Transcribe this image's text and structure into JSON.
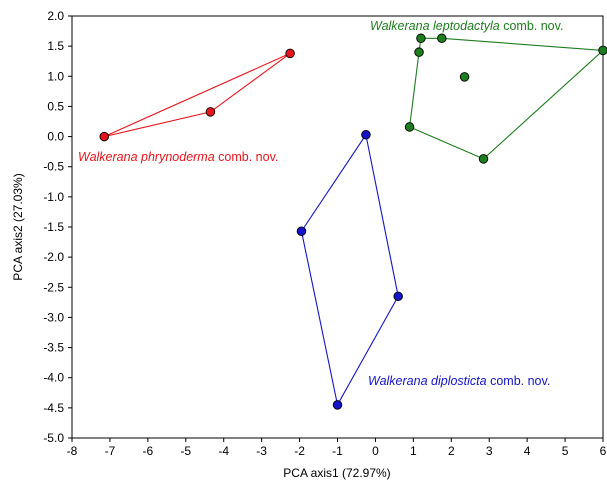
{
  "chart_data": {
    "type": "scatter",
    "xlabel": "PCA axis1 (72.97%)",
    "ylabel": "PCA axis2 (27.03%)",
    "xlim": [
      -8,
      6
    ],
    "ylim": [
      -5.0,
      2.0
    ],
    "x_ticks": [
      -8,
      -7,
      -6,
      -5,
      -4,
      -3,
      -2,
      -1,
      0,
      1,
      2,
      3,
      4,
      5,
      6
    ],
    "x_tick_labels": [
      "-8",
      "-7",
      "-6",
      "-5",
      "-4",
      "-3",
      "-2",
      "-1",
      "0",
      "1",
      "2",
      "3",
      "4",
      "5",
      "6"
    ],
    "y_ticks": [
      2.0,
      1.5,
      1.0,
      0.5,
      0.0,
      -0.5,
      -1.0,
      -1.5,
      -2.0,
      -2.5,
      -3.0,
      -3.5,
      -4.0,
      -4.5,
      -5.0
    ],
    "y_tick_labels": [
      "2.0",
      "1.5",
      "1.0",
      "0.5",
      "0.0",
      "-0.5",
      "-1.0",
      "-1.5",
      "-2.0",
      "-2.5",
      "-3.0",
      "-3.5",
      "-4.0",
      "-4.5",
      "-5.0"
    ],
    "grid": false,
    "series": [
      {
        "genus": "Walkerana",
        "species": "phrynoderma",
        "suffix": " comb. nov.",
        "color": "#e8141b",
        "points": [
          [
            -7.15,
            0.0
          ],
          [
            -4.35,
            0.41
          ],
          [
            -2.25,
            1.38
          ]
        ],
        "hull": [
          0,
          1,
          2
        ]
      },
      {
        "genus": "Walkerana",
        "species": "leptodactyla",
        "suffix": " comb. nov.",
        "color": "#1e7d1e",
        "points": [
          [
            1.2,
            1.63
          ],
          [
            1.75,
            1.63
          ],
          [
            1.15,
            1.4
          ],
          [
            2.35,
            0.99
          ],
          [
            0.9,
            0.16
          ],
          [
            2.85,
            -0.37
          ],
          [
            6.0,
            1.43
          ]
        ],
        "hull": [
          0,
          1,
          6,
          5,
          4,
          2
        ]
      },
      {
        "genus": "Walkerana",
        "species": "diplosticta",
        "suffix": " comb. nov.",
        "color": "#1414c8",
        "points": [
          [
            -0.25,
            0.03
          ],
          [
            -1.95,
            -1.57
          ],
          [
            0.6,
            -2.65
          ],
          [
            -1.0,
            -4.45
          ]
        ],
        "hull": [
          0,
          2,
          3,
          1
        ]
      }
    ]
  }
}
